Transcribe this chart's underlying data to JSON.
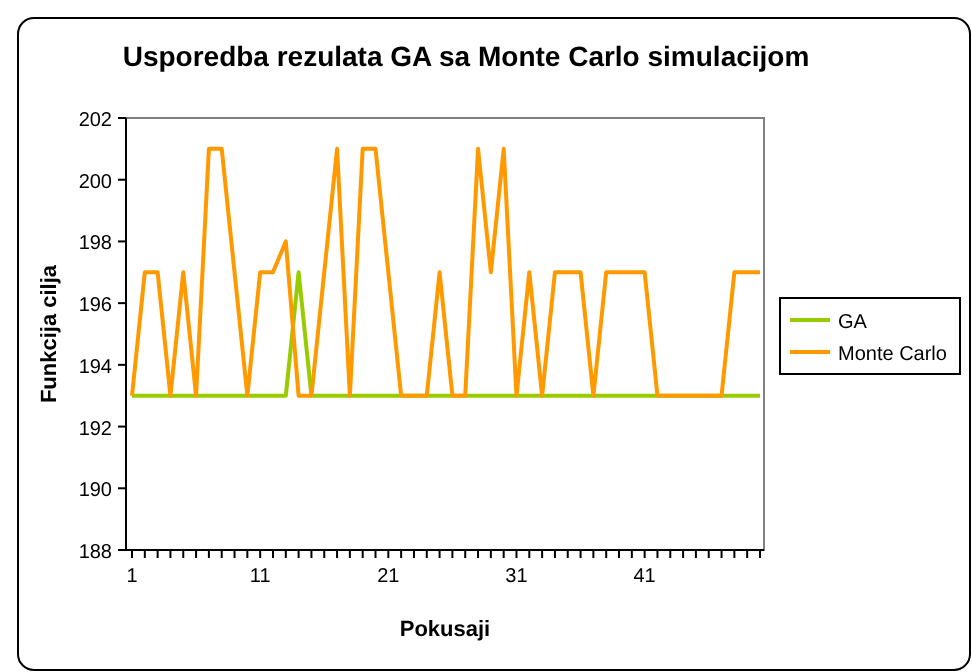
{
  "chart_data": {
    "type": "line",
    "title": "Usporedba rezulata GA sa Monte Carlo simulacijom",
    "xlabel": "Pokusaji",
    "ylabel": "Funkcija cilja",
    "categories": [
      "1",
      null,
      null,
      null,
      null,
      null,
      null,
      null,
      null,
      null,
      "11",
      null,
      null,
      null,
      null,
      null,
      null,
      null,
      null,
      null,
      "21",
      null,
      null,
      null,
      null,
      null,
      null,
      null,
      null,
      null,
      "31",
      null,
      null,
      null,
      null,
      null,
      null,
      null,
      null,
      null,
      "41",
      null,
      null,
      null,
      null,
      null,
      null,
      null,
      null,
      null
    ],
    "series": [
      {
        "name": "GA",
        "color": "#99cc00",
        "values": [
          193,
          193,
          193,
          193,
          193,
          193,
          193,
          193,
          193,
          193,
          193,
          193,
          193,
          197,
          193,
          193,
          193,
          193,
          193,
          193,
          193,
          193,
          193,
          193,
          193,
          193,
          193,
          193,
          193,
          193,
          193,
          193,
          193,
          193,
          193,
          193,
          193,
          193,
          193,
          193,
          193,
          193,
          193,
          193,
          193,
          193,
          193,
          193,
          193,
          193
        ]
      },
      {
        "name": "Monte Carlo",
        "color": "#ff9900",
        "values": [
          193,
          197,
          197,
          193,
          197,
          193,
          201,
          201,
          197,
          193,
          197,
          197,
          198,
          193,
          193,
          197,
          201,
          193,
          201,
          201,
          197,
          193,
          193,
          193,
          197,
          193,
          193,
          201,
          197,
          201,
          193,
          197,
          193,
          197,
          197,
          197,
          193,
          197,
          197,
          197,
          197,
          193,
          193,
          193,
          193,
          193,
          193,
          197,
          197,
          197
        ]
      }
    ],
    "ylim": [
      188,
      202
    ],
    "yticks": [
      188,
      190,
      192,
      194,
      196,
      198,
      200,
      202
    ],
    "grid": false,
    "legend": "right",
    "marker": "none",
    "line_style": "solid"
  }
}
